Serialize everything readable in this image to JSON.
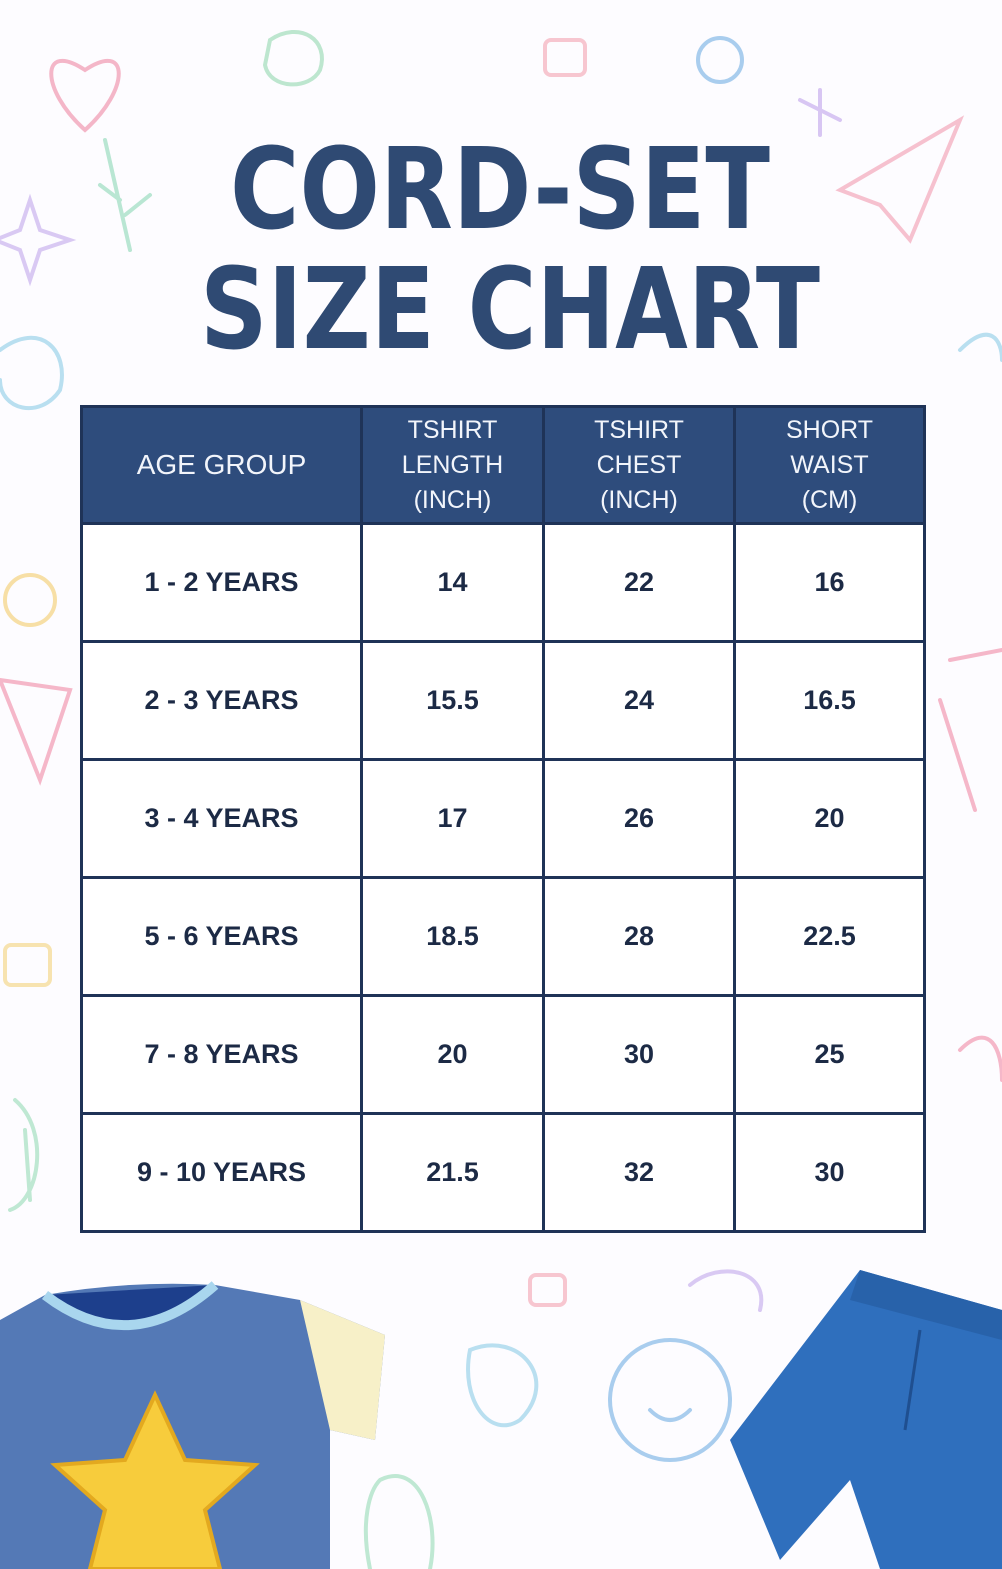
{
  "title": {
    "line1": "CORD-SET",
    "line2": "SIZE CHART"
  },
  "table": {
    "headers": [
      "AGE GROUP",
      "TSHIRT LENGTH (INCH)",
      "TSHIRT CHEST (INCH)",
      "SHORT WAIST (CM)"
    ],
    "rows": [
      [
        "1 - 2 YEARS",
        14,
        22,
        16
      ],
      [
        "2 - 3 YEARS",
        15.5,
        24,
        16.5
      ],
      [
        "3 - 4 YEARS",
        17,
        26,
        20
      ],
      [
        "5 - 6 YEARS",
        18.5,
        28,
        22.5
      ],
      [
        "7 - 8 YEARS",
        20,
        30,
        25
      ],
      [
        "9 - 10 YEARS",
        21.5,
        32,
        30
      ]
    ]
  }
}
